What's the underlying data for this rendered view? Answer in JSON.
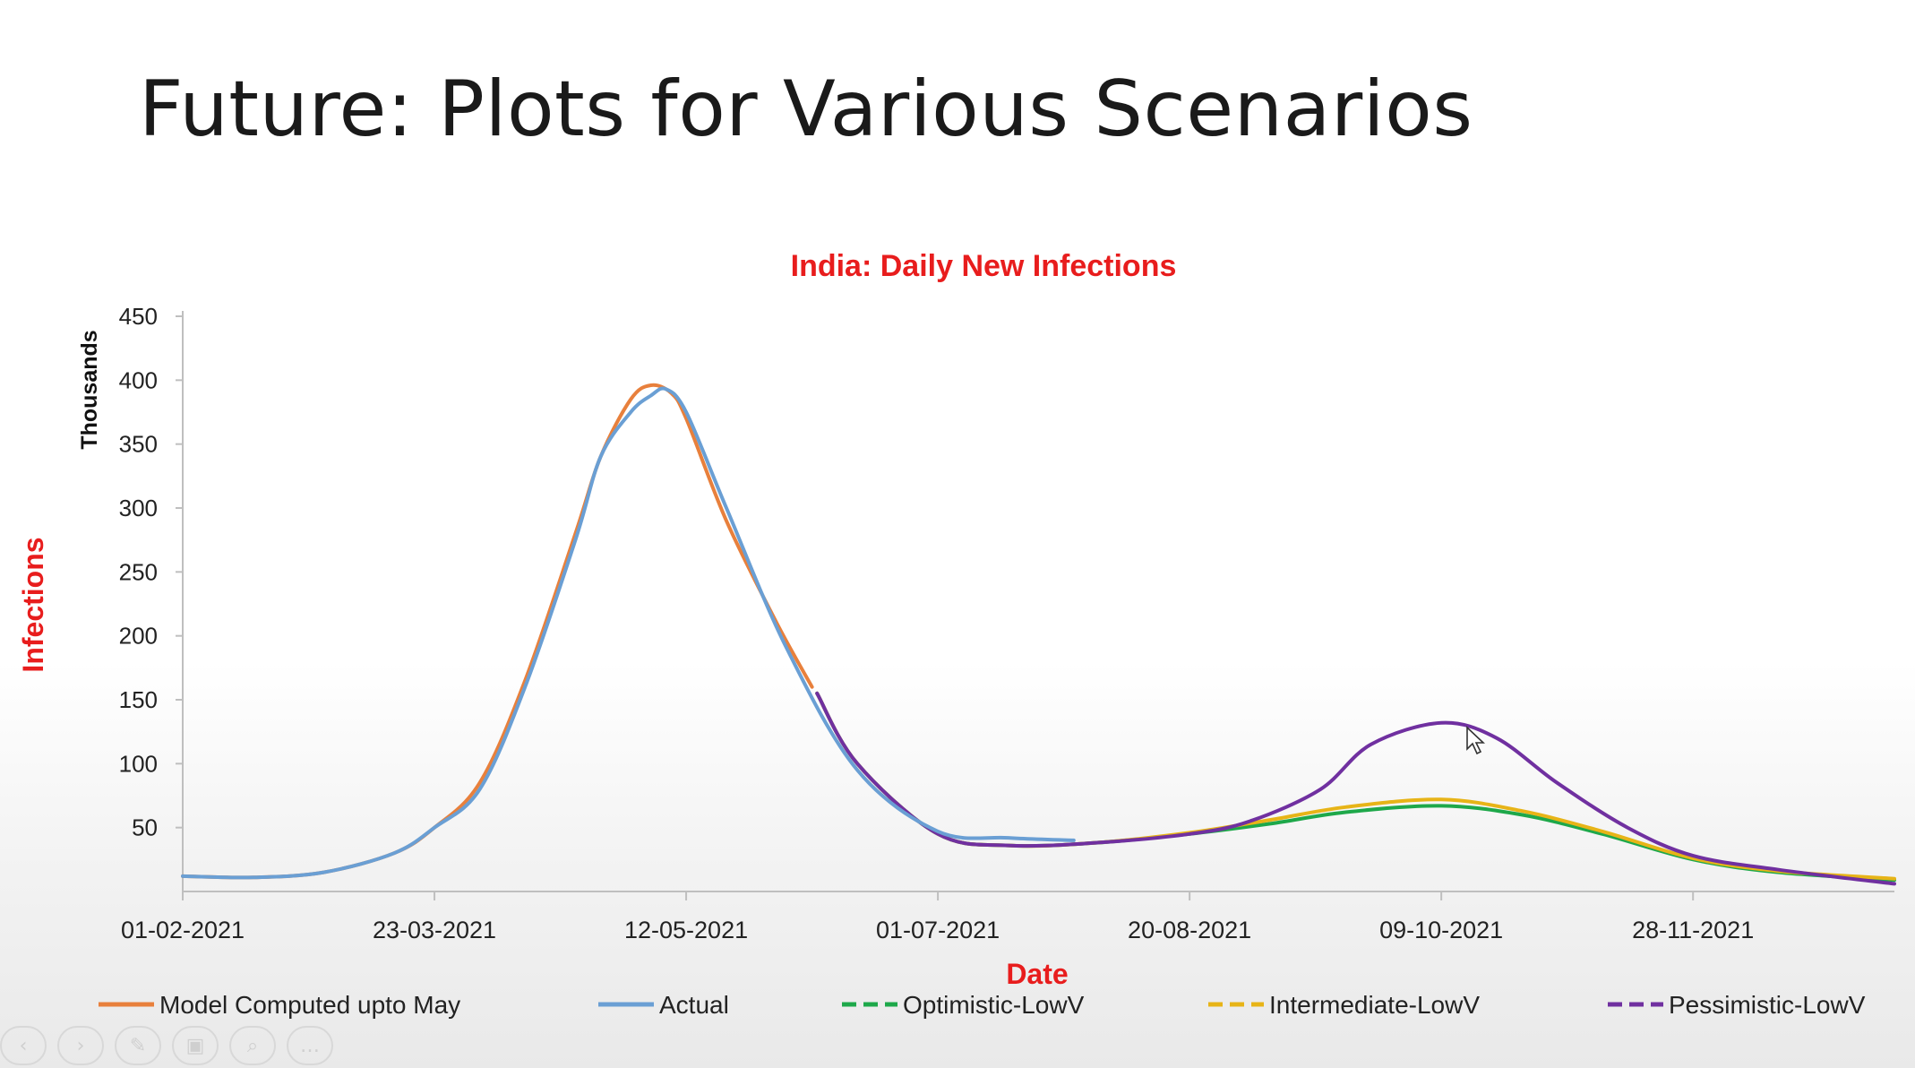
{
  "slide": {
    "title": "Future: Plots for Various Scenarios"
  },
  "colors": {
    "model": "#E8803C",
    "actual": "#6A9FD4",
    "optimistic": "#1EA84A",
    "intermediate": "#E7B417",
    "pessimistic": "#7030A0",
    "title_red": "#E81D1D"
  },
  "chart_data": {
    "type": "line",
    "title": "India: Daily New Infections",
    "xlabel": "Date",
    "ylabel": "Infections",
    "yunit": "Thousands",
    "ylim": [
      0,
      450
    ],
    "y_ticks": [
      50,
      100,
      150,
      200,
      250,
      300,
      350,
      400,
      450
    ],
    "x_ticks": [
      "01-02-2021",
      "23-03-2021",
      "12-05-2021",
      "01-07-2021",
      "20-08-2021",
      "09-10-2021",
      "28-11-2021"
    ],
    "xlim": [
      "01-02-2021",
      "07-01-2022"
    ],
    "legend_position": "bottom",
    "series": [
      {
        "name": "Model Computed upto May",
        "color": "#E8803C",
        "dashed": false,
        "x": [
          "01-02-2021",
          "15-02-2021",
          "01-03-2021",
          "15-03-2021",
          "23-03-2021",
          "01-04-2021",
          "10-04-2021",
          "20-04-2021",
          "25-04-2021",
          "01-05-2021",
          "05-05-2021",
          "09-05-2021",
          "12-05-2021",
          "20-05-2021",
          "30-05-2021",
          "06-06-2021"
        ],
        "y": [
          12,
          11,
          15,
          30,
          50,
          85,
          165,
          280,
          340,
          385,
          396,
          390,
          370,
          290,
          210,
          160
        ]
      },
      {
        "name": "Actual",
        "color": "#6A9FD4",
        "dashed": false,
        "x": [
          "01-02-2021",
          "15-02-2021",
          "01-03-2021",
          "15-03-2021",
          "23-03-2021",
          "01-04-2021",
          "10-04-2021",
          "20-04-2021",
          "25-04-2021",
          "01-05-2021",
          "05-05-2021",
          "08-05-2021",
          "12-05-2021",
          "20-05-2021",
          "01-06-2021",
          "15-06-2021",
          "01-07-2021",
          "15-07-2021",
          "28-07-2021"
        ],
        "y": [
          12,
          11,
          15,
          30,
          50,
          80,
          160,
          275,
          340,
          375,
          388,
          393,
          375,
          300,
          190,
          95,
          47,
          42,
          40
        ]
      },
      {
        "name": "Optimistic-LowV",
        "color": "#1EA84A",
        "dashed": true,
        "x": [
          "07-06-2021",
          "15-06-2021",
          "01-07-2021",
          "15-07-2021",
          "01-08-2021",
          "20-08-2021",
          "05-09-2021",
          "20-09-2021",
          "09-10-2021",
          "25-10-2021",
          "10-11-2021",
          "28-11-2021",
          "15-12-2021",
          "07-01-2022"
        ],
        "y": [
          155,
          100,
          45,
          36,
          38,
          45,
          53,
          62,
          67,
          60,
          45,
          25,
          15,
          9
        ]
      },
      {
        "name": "Intermediate-LowV",
        "color": "#E7B417",
        "dashed": true,
        "x": [
          "07-06-2021",
          "15-06-2021",
          "01-07-2021",
          "15-07-2021",
          "01-08-2021",
          "20-08-2021",
          "05-09-2021",
          "20-09-2021",
          "09-10-2021",
          "25-10-2021",
          "10-11-2021",
          "28-11-2021",
          "15-12-2021",
          "07-01-2022"
        ],
        "y": [
          155,
          100,
          45,
          36,
          38,
          46,
          56,
          66,
          72,
          63,
          47,
          26,
          16,
          10
        ]
      },
      {
        "name": "Pessimistic-LowV",
        "color": "#7030A0",
        "dashed": true,
        "x": [
          "07-06-2021",
          "15-06-2021",
          "01-07-2021",
          "15-07-2021",
          "01-08-2021",
          "20-08-2021",
          "01-09-2021",
          "15-09-2021",
          "25-09-2021",
          "09-10-2021",
          "20-10-2021",
          "01-11-2021",
          "15-11-2021",
          "28-11-2021",
          "15-12-2021",
          "07-01-2022"
        ],
        "y": [
          155,
          100,
          45,
          36,
          38,
          45,
          55,
          80,
          115,
          132,
          120,
          85,
          50,
          28,
          17,
          6
        ]
      }
    ]
  }
}
